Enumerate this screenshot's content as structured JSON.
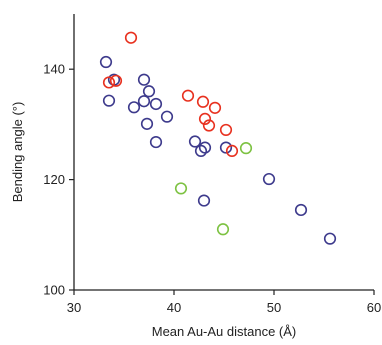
{
  "chart_data": {
    "type": "scatter",
    "xlabel": "Mean Au-Au distance (Å)",
    "ylabel": "Bending angle (°)",
    "xlim": [
      30,
      60
    ],
    "ylim": [
      100,
      150
    ],
    "x_ticks": [
      "30",
      "40",
      "50",
      "60"
    ],
    "y_ticks": [
      "100",
      "120",
      "140"
    ],
    "x_tick_values": [
      30,
      40,
      50,
      60
    ],
    "y_tick_values": [
      100,
      120,
      140
    ],
    "marker": "open-circle",
    "series": [
      {
        "color": "#3d3a8c",
        "points": [
          [
            33.2,
            141.3
          ],
          [
            33.5,
            134.3
          ],
          [
            34.0,
            138.1
          ],
          [
            36.0,
            133.1
          ],
          [
            37.0,
            138.1
          ],
          [
            37.5,
            136.0
          ],
          [
            37.0,
            134.2
          ],
          [
            38.2,
            133.7
          ],
          [
            37.3,
            130.1
          ],
          [
            39.3,
            131.4
          ],
          [
            38.2,
            126.8
          ],
          [
            42.1,
            126.9
          ],
          [
            42.7,
            125.2
          ],
          [
            43.1,
            125.8
          ],
          [
            45.2,
            125.8
          ],
          [
            49.5,
            120.1
          ],
          [
            43.0,
            116.2
          ],
          [
            52.7,
            114.5
          ],
          [
            55.6,
            109.3
          ]
        ]
      },
      {
        "color": "#e8311f",
        "points": [
          [
            35.7,
            145.7
          ],
          [
            33.5,
            137.6
          ],
          [
            34.2,
            137.9
          ],
          [
            41.4,
            135.2
          ],
          [
            42.9,
            134.1
          ],
          [
            44.1,
            133.0
          ],
          [
            43.1,
            131.0
          ],
          [
            43.5,
            129.8
          ],
          [
            45.2,
            129.0
          ],
          [
            45.8,
            125.2
          ]
        ]
      },
      {
        "color": "#7dc242",
        "points": [
          [
            47.2,
            125.7
          ],
          [
            40.7,
            118.4
          ],
          [
            44.9,
            111.0
          ]
        ]
      }
    ]
  }
}
